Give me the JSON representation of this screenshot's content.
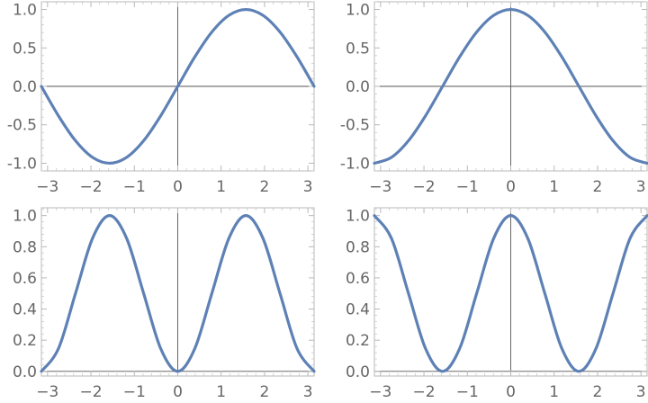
{
  "colors": {
    "series": "#5e81b5",
    "frame": "#b8b8b8",
    "axis": "#555555",
    "tick_label": "#666666"
  },
  "chart_data": [
    {
      "type": "line",
      "title": "",
      "xlabel": "",
      "ylabel": "",
      "xlim": [
        -3.14159,
        3.14159
      ],
      "ylim": [
        -1.1,
        1.1
      ],
      "grid": false,
      "x_ticks": [
        -3,
        -2,
        -1,
        0,
        1,
        2,
        3
      ],
      "x_tick_labels": [
        "−3",
        "−2",
        "−1",
        "0",
        "1",
        "2",
        "3"
      ],
      "y_ticks": [
        -1.0,
        -0.5,
        0.0,
        0.5,
        1.0
      ],
      "y_tick_labels": [
        "-1.0",
        "-0.5",
        "0.0",
        "0.5",
        "1.0"
      ],
      "series": [
        {
          "x": [
            -3.1416,
            -2.7489,
            -2.3562,
            -1.9635,
            -1.5708,
            -1.1781,
            -0.7854,
            -0.3927,
            0,
            0.3927,
            0.7854,
            1.1781,
            1.5708,
            1.9635,
            2.3562,
            2.7489,
            3.1416
          ],
          "y": [
            0,
            -0.383,
            -0.707,
            -0.924,
            -1,
            -0.924,
            -0.707,
            -0.383,
            0,
            0.383,
            0.707,
            0.924,
            1,
            0.924,
            0.707,
            0.383,
            0
          ]
        }
      ]
    },
    {
      "type": "line",
      "title": "",
      "xlabel": "",
      "ylabel": "",
      "xlim": [
        -3.14159,
        3.14159
      ],
      "ylim": [
        -1.1,
        1.1
      ],
      "grid": false,
      "x_ticks": [
        -3,
        -2,
        -1,
        0,
        1,
        2,
        3
      ],
      "x_tick_labels": [
        "−3",
        "−2",
        "−1",
        "0",
        "1",
        "2",
        "3"
      ],
      "y_ticks": [
        -1.0,
        -0.5,
        0.0,
        0.5,
        1.0
      ],
      "y_tick_labels": [
        "-1.0",
        "-0.5",
        "0.0",
        "0.5",
        "1.0"
      ],
      "series": [
        {
          "x": [
            -3.1416,
            -2.7489,
            -2.3562,
            -1.9635,
            -1.5708,
            -1.1781,
            -0.7854,
            -0.3927,
            0,
            0.3927,
            0.7854,
            1.1781,
            1.5708,
            1.9635,
            2.3562,
            2.7489,
            3.1416
          ],
          "y": [
            -1,
            -0.924,
            -0.707,
            -0.383,
            0,
            0.383,
            0.707,
            0.924,
            1,
            0.924,
            0.707,
            0.383,
            0,
            -0.383,
            -0.707,
            -0.924,
            -1
          ]
        }
      ]
    },
    {
      "type": "line",
      "title": "",
      "xlabel": "",
      "ylabel": "",
      "xlim": [
        -3.14159,
        3.14159
      ],
      "ylim": [
        -0.03,
        1.05
      ],
      "grid": false,
      "x_ticks": [
        -3,
        -2,
        -1,
        0,
        1,
        2,
        3
      ],
      "x_tick_labels": [
        "−3",
        "−2",
        "−1",
        "0",
        "1",
        "2",
        "3"
      ],
      "y_ticks": [
        0.0,
        0.2,
        0.4,
        0.6,
        0.8,
        1.0
      ],
      "y_tick_labels": [
        "0.0",
        "0.2",
        "0.4",
        "0.6",
        "0.8",
        "1.0"
      ],
      "series": [
        {
          "x": [
            -3.1416,
            -2.7489,
            -2.3562,
            -1.9635,
            -1.5708,
            -1.1781,
            -0.7854,
            -0.3927,
            0,
            0.3927,
            0.7854,
            1.1781,
            1.5708,
            1.9635,
            2.3562,
            2.7489,
            3.1416
          ],
          "y": [
            0,
            0.146,
            0.5,
            0.854,
            1,
            0.854,
            0.5,
            0.146,
            0,
            0.146,
            0.5,
            0.854,
            1,
            0.854,
            0.5,
            0.146,
            0
          ]
        }
      ]
    },
    {
      "type": "line",
      "title": "",
      "xlabel": "",
      "ylabel": "",
      "xlim": [
        -3.14159,
        3.14159
      ],
      "ylim": [
        -0.03,
        1.05
      ],
      "grid": false,
      "x_ticks": [
        -3,
        -2,
        -1,
        0,
        1,
        2,
        3
      ],
      "x_tick_labels": [
        "−3",
        "−2",
        "−1",
        "0",
        "1",
        "2",
        "3"
      ],
      "y_ticks": [
        0.0,
        0.2,
        0.4,
        0.6,
        0.8,
        1.0
      ],
      "y_tick_labels": [
        "0.0",
        "0.2",
        "0.4",
        "0.6",
        "0.8",
        "1.0"
      ],
      "series": [
        {
          "x": [
            -3.1416,
            -2.7489,
            -2.3562,
            -1.9635,
            -1.5708,
            -1.1781,
            -0.7854,
            -0.3927,
            0,
            0.3927,
            0.7854,
            1.1781,
            1.5708,
            1.9635,
            2.3562,
            2.7489,
            3.1416
          ],
          "y": [
            1,
            0.854,
            0.5,
            0.146,
            0,
            0.146,
            0.5,
            0.854,
            1,
            0.854,
            0.5,
            0.146,
            0,
            0.146,
            0.5,
            0.854,
            1
          ]
        }
      ]
    }
  ]
}
